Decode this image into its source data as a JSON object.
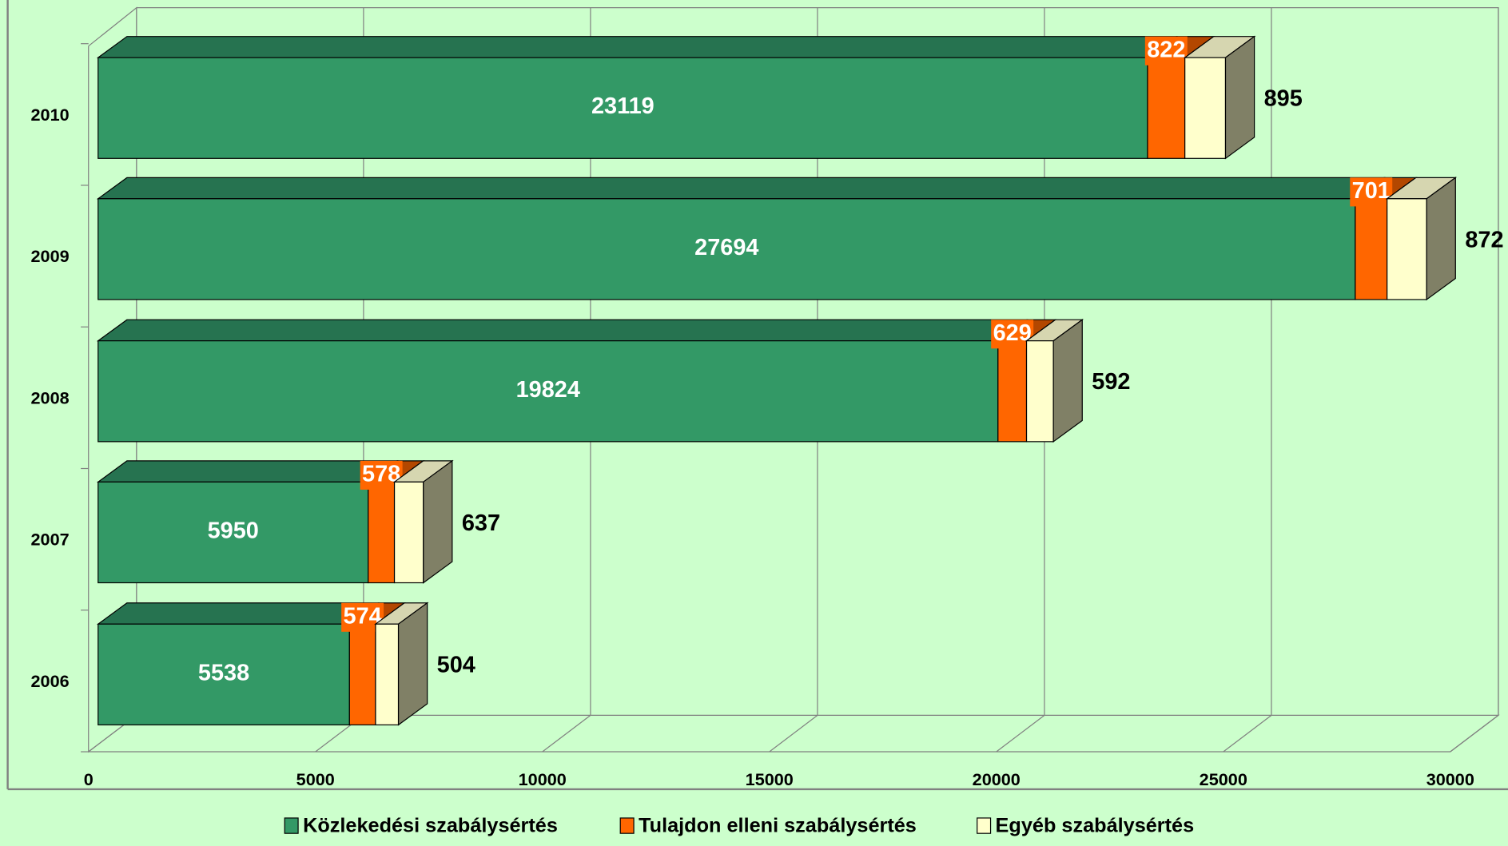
{
  "chart_data": {
    "type": "bar3d_stacked_horizontal",
    "categories": [
      "2006",
      "2007",
      "2008",
      "2009",
      "2010"
    ],
    "series": [
      {
        "name": "Közlekedési szabálysértés",
        "color": "#339966",
        "values": [
          5538,
          5950,
          19824,
          27694,
          23119
        ]
      },
      {
        "name": "Tulajdon elleni szabálysértés",
        "color": "#ff6600",
        "values": [
          574,
          578,
          629,
          701,
          822
        ]
      },
      {
        "name": "Egyéb szabálysértés",
        "color": "#ffffcc",
        "values": [
          504,
          637,
          592,
          872,
          895
        ]
      }
    ],
    "xlim": [
      0,
      30000
    ],
    "xticks": [
      0,
      5000,
      10000,
      15000,
      20000,
      25000,
      30000
    ],
    "grid": true
  }
}
